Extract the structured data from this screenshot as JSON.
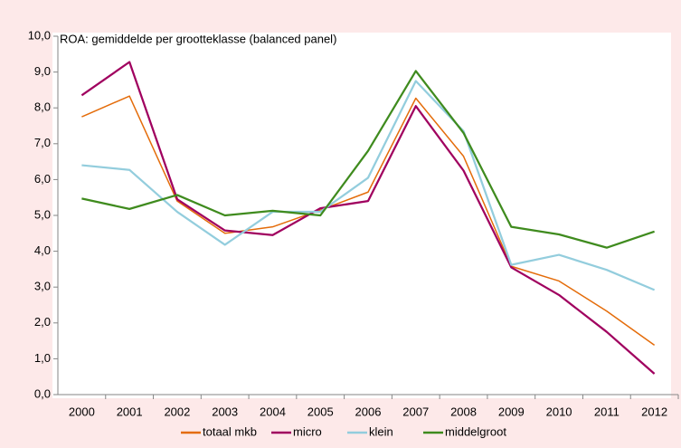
{
  "chart_data": {
    "type": "line",
    "title": "ROA: gemiddelde per grootteklasse (balanced panel)",
    "categories": [
      "2000",
      "2001",
      "2002",
      "2003",
      "2004",
      "2005",
      "2006",
      "2007",
      "2008",
      "2009",
      "2010",
      "2011",
      "2012"
    ],
    "series": [
      {
        "name": "totaal mkb",
        "color": "#e46c0a",
        "values": [
          7.75,
          8.33,
          5.4,
          4.5,
          4.68,
          5.15,
          5.65,
          8.27,
          6.65,
          3.58,
          3.17,
          2.33,
          1.38
        ]
      },
      {
        "name": "micro",
        "color": "#a0005f",
        "values": [
          8.35,
          9.28,
          5.45,
          4.58,
          4.45,
          5.2,
          5.4,
          8.05,
          6.25,
          3.55,
          2.78,
          1.75,
          0.58
        ]
      },
      {
        "name": "klein",
        "color": "#93cddd",
        "values": [
          6.4,
          6.27,
          5.1,
          4.18,
          5.1,
          5.1,
          6.05,
          8.75,
          7.35,
          3.62,
          3.9,
          3.48,
          2.92
        ]
      },
      {
        "name": "middelgroot",
        "color": "#3f8b1e",
        "values": [
          5.47,
          5.18,
          5.57,
          5.0,
          5.13,
          5.0,
          6.8,
          9.03,
          7.3,
          4.68,
          4.47,
          4.1,
          4.55
        ]
      }
    ],
    "ylim": [
      0,
      10
    ],
    "yticks": [
      {
        "value": 0,
        "label": "0,0"
      },
      {
        "value": 1,
        "label": "1,0"
      },
      {
        "value": 2,
        "label": "2,0"
      },
      {
        "value": 3,
        "label": "3,0"
      },
      {
        "value": 4,
        "label": "4,0"
      },
      {
        "value": 5,
        "label": "5,0"
      },
      {
        "value": 6,
        "label": "6,0"
      },
      {
        "value": 7,
        "label": "7,0"
      },
      {
        "value": 8,
        "label": "8,0"
      },
      {
        "value": 9,
        "label": "9,0"
      },
      {
        "value": 10,
        "label": "10,0"
      }
    ],
    "grid": false,
    "legend": "bottom"
  }
}
